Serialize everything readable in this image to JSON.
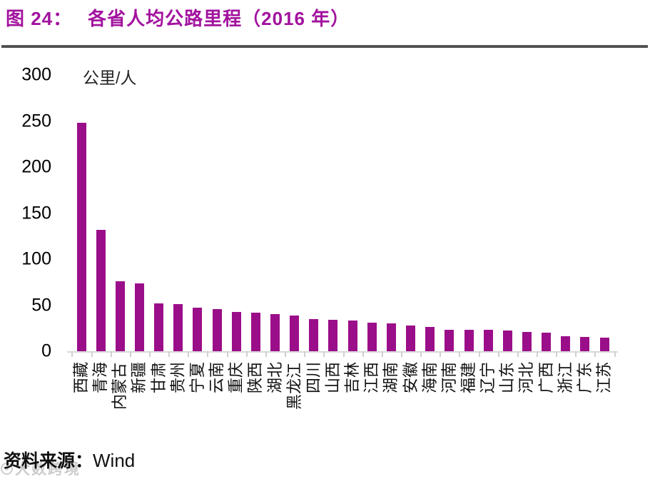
{
  "header": {
    "figure_label": "图 24：",
    "title": "各省人均公路里程（2016 年）"
  },
  "colors": {
    "title": "#A2129E",
    "bar": "#9B0E89",
    "axis_line": "#d9d9d9"
  },
  "chart_data": {
    "type": "bar",
    "title": "各省人均公路里程（2016 年）",
    "unit_label": "公里/人",
    "categories": [
      "西藏",
      "青海",
      "内蒙古",
      "新疆",
      "甘肃",
      "贵州",
      "宁夏",
      "云南",
      "重庆",
      "陕西",
      "湖北",
      "黑龙江",
      "四川",
      "山西",
      "吉林",
      "江西",
      "湖南",
      "安徽",
      "海南",
      "河南",
      "福建",
      "辽宁",
      "山东",
      "河北",
      "广西",
      "浙江",
      "广东",
      "江苏"
    ],
    "values": [
      248,
      132,
      76,
      74,
      52,
      51,
      47,
      46,
      43,
      42,
      40,
      39,
      35,
      34,
      33,
      31,
      30,
      28,
      26,
      23.5,
      23,
      23,
      22.5,
      21,
      20,
      16.5,
      15.5,
      15
    ],
    "yticks": [
      300,
      250,
      200,
      150,
      100,
      50,
      0
    ],
    "ylim": [
      0,
      300
    ],
    "xlabel": "",
    "ylabel": "公里/人",
    "grid": false,
    "legend": false,
    "bar_color": "#9B0E89"
  },
  "footer": {
    "source_label": "资料来源：",
    "source_value": "Wind"
  },
  "watermark": {
    "logo_icon": "ring-logo",
    "text": "大数跨境"
  }
}
